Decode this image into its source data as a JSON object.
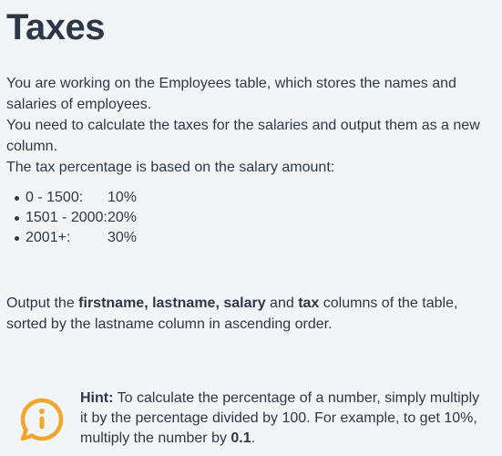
{
  "title": "Taxes",
  "intro": {
    "line1": "You are working on the Employees table, which stores the names and salaries of employees.",
    "line2": "You need to calculate the taxes for the salaries and output them as a new column.",
    "line3": "The tax percentage is based on the salary amount:"
  },
  "tiers": [
    {
      "range": "0 - 1500:",
      "rate": "10%"
    },
    {
      "range": "1501 - 2000:",
      "rate": "20%"
    },
    {
      "range": "2001+:",
      "rate": "30%"
    }
  ],
  "output": {
    "prefix": "Output the ",
    "bold1": "firstname, lastname, salary",
    "mid": " and ",
    "bold2": "tax",
    "suffix": " columns of the table, sorted by the lastname column in ascending order."
  },
  "hint": {
    "label": "Hint:",
    "text": " To calculate the percentage of a number, simply multiply it by the percentage divided by 100. For example, to get 10%, multiply the number by ",
    "value": "0.1",
    "end": ".",
    "icon": "info-speech-bubble-icon",
    "icon_color": "#f4a52b"
  }
}
